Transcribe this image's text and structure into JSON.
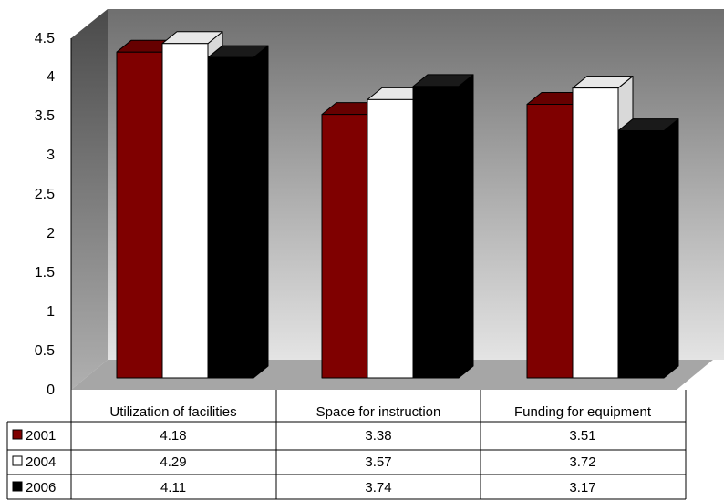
{
  "chart_data": {
    "type": "bar",
    "categories": [
      "Utilization of facilities",
      "Space for instruction",
      "Funding for equipment"
    ],
    "series": [
      {
        "name": "2001",
        "values": [
          4.18,
          3.38,
          3.51
        ],
        "color": "#7f0000"
      },
      {
        "name": "2004",
        "values": [
          4.29,
          3.57,
          3.72
        ],
        "color": "#ffffff"
      },
      {
        "name": "2006",
        "values": [
          4.11,
          3.74,
          3.17
        ],
        "color": "#000000"
      }
    ],
    "yticks": [
      "0",
      "0.5",
      "1",
      "1.5",
      "2",
      "2.5",
      "3",
      "3.5",
      "4",
      "4.5"
    ],
    "ylim": [
      0,
      4.5
    ],
    "legend": "data-table",
    "grid": false,
    "style": "3d-clustered-column"
  }
}
